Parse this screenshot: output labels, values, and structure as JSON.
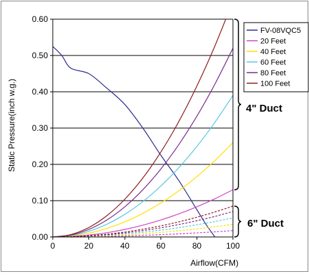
{
  "chart_data": {
    "type": "line",
    "xlabel": "Airflow(CFM)",
    "ylabel": "Static Pressure(inch w.g.)",
    "xlim": [
      0,
      100
    ],
    "ylim": [
      0,
      0.6
    ],
    "x_ticks": [
      "0",
      "20",
      "40",
      "60",
      "80",
      "100"
    ],
    "y_ticks": [
      "0.00",
      "0.10",
      "0.20",
      "0.30",
      "0.40",
      "0.50",
      "0.60"
    ],
    "grid": "horizontal",
    "legend_position": "top-right, outside plot",
    "x": [
      0,
      10,
      20,
      30,
      40,
      50,
      60,
      70,
      80,
      90,
      100
    ],
    "series": [
      {
        "name": "FV-08VQC5",
        "color": "#2b2b8c",
        "dash": "solid",
        "points": [
          [
            0,
            0.525
          ],
          [
            5,
            0.5
          ],
          [
            10,
            0.465
          ],
          [
            20,
            0.45
          ],
          [
            30,
            0.41
          ],
          [
            40,
            0.365
          ],
          [
            50,
            0.3
          ],
          [
            60,
            0.225
          ],
          [
            70,
            0.155
          ],
          [
            80,
            0.075
          ],
          [
            85,
            0.035
          ],
          [
            90,
            0.0
          ]
        ]
      },
      {
        "name": "20 Feet",
        "color": "#cc44cc",
        "dash": "solid",
        "values": [
          0.0,
          0.0013,
          0.0052,
          0.0117,
          0.0208,
          0.0325,
          0.0468,
          0.0637,
          0.0832,
          0.1053,
          0.13
        ]
      },
      {
        "name": "40 Feet",
        "color": "#ffe000",
        "dash": "solid",
        "values": [
          0.0,
          0.0026,
          0.0104,
          0.0234,
          0.0416,
          0.065,
          0.0936,
          0.1274,
          0.1664,
          0.2106,
          0.26
        ]
      },
      {
        "name": "60 Feet",
        "color": "#55c8e0",
        "dash": "solid",
        "values": [
          0.0,
          0.0039,
          0.0156,
          0.0351,
          0.0624,
          0.0975,
          0.1404,
          0.1911,
          0.2496,
          0.3159,
          0.39
        ]
      },
      {
        "name": "80 Feet",
        "color": "#7a2a8a",
        "dash": "solid",
        "values": [
          0.0,
          0.0052,
          0.0208,
          0.0468,
          0.0832,
          0.13,
          0.1872,
          0.2548,
          0.3328,
          0.4212,
          0.52
        ]
      },
      {
        "name": "100 Feet",
        "color": "#8b1a1a",
        "dash": "solid",
        "values": [
          0.0,
          0.0065,
          0.026,
          0.0585,
          0.104,
          0.1625,
          0.234,
          0.3185,
          0.416,
          0.5265,
          0.65
        ]
      },
      {
        "color": "#cc44cc",
        "dash": "dashed",
        "values": [
          0.0,
          0.0002,
          0.0007,
          0.0016,
          0.0028,
          0.0044,
          0.0063,
          0.0086,
          0.0112,
          0.0142,
          0.0175
        ]
      },
      {
        "color": "#ffe000",
        "dash": "dashed",
        "values": [
          0.0,
          0.0004,
          0.0014,
          0.0032,
          0.0056,
          0.0088,
          0.0126,
          0.0172,
          0.0224,
          0.0284,
          0.035
        ]
      },
      {
        "color": "#55c8e0",
        "dash": "dashed",
        "values": [
          0.0,
          0.0005,
          0.0021,
          0.0047,
          0.0084,
          0.0131,
          0.0189,
          0.0257,
          0.0336,
          0.0425,
          0.0525
        ]
      },
      {
        "color": "#7a2a8a",
        "dash": "dashed",
        "values": [
          0.0,
          0.0007,
          0.0028,
          0.0063,
          0.0112,
          0.0175,
          0.0252,
          0.0343,
          0.0448,
          0.0567,
          0.07
        ]
      },
      {
        "color": "#8b1a1a",
        "dash": "dashed",
        "values": [
          0.0,
          0.0009,
          0.0034,
          0.0077,
          0.0136,
          0.0213,
          0.0306,
          0.0417,
          0.0544,
          0.0689,
          0.085
        ]
      }
    ],
    "annotations": [
      {
        "text": "4\" Duct",
        "spans_y": [
          0.13,
          0.6
        ]
      },
      {
        "text": "6\" Duct",
        "spans_y": [
          0.0,
          0.085
        ]
      }
    ]
  },
  "colors": {
    "axis": "#000000",
    "grid": "#000000",
    "frame": "#888888",
    "text": "#000000"
  }
}
